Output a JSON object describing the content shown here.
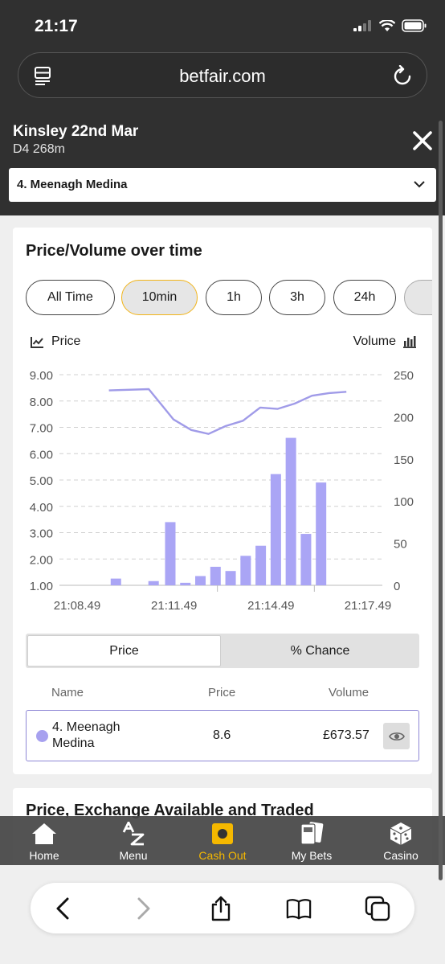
{
  "status": {
    "time": "21:17"
  },
  "browser": {
    "url": "betfair.com"
  },
  "event": {
    "name": "Kinsley 22nd Mar",
    "subtitle": "D4 268m",
    "selected_runner": "4. Meenagh Medina"
  },
  "card": {
    "title": "Price/Volume over time",
    "ranges": [
      "All Time",
      "10min",
      "1h",
      "3h",
      "24h"
    ],
    "active_range": "10min",
    "legend_price": "Price",
    "legend_volume": "Volume"
  },
  "chart_data": {
    "type": "bar",
    "title": "",
    "x_ticks": [
      "21:08.49",
      "21:11.49",
      "21:14.49",
      "21:17.49"
    ],
    "y_left_ticks": [
      "9.00",
      "8.00",
      "7.00",
      "6.00",
      "5.00",
      "4.00",
      "3.00",
      "2.00",
      "1.00"
    ],
    "y_right_ticks": [
      "250",
      "200",
      "150",
      "100",
      "50",
      "0"
    ],
    "y_left_range": [
      1,
      9
    ],
    "y_right_range": [
      0,
      250
    ],
    "volume_series": [
      {
        "time": "21:10.04",
        "volume": 8
      },
      {
        "time": "21:11.14",
        "volume": 5
      },
      {
        "time": "21:11.45",
        "volume": 75
      },
      {
        "time": "21:12.13",
        "volume": 3
      },
      {
        "time": "21:12.41",
        "volume": 11
      },
      {
        "time": "21:13.09",
        "volume": 22
      },
      {
        "time": "21:13.37",
        "volume": 17
      },
      {
        "time": "21:14.05",
        "volume": 35
      },
      {
        "time": "21:14.33",
        "volume": 47
      },
      {
        "time": "21:15.01",
        "volume": 132
      },
      {
        "time": "21:15.29",
        "volume": 175
      },
      {
        "time": "21:15.57",
        "volume": 61
      },
      {
        "time": "21:16.25",
        "volume": 122
      }
    ],
    "price_series": [
      {
        "time": "21:09.51",
        "price": 8.4
      },
      {
        "time": "21:11.05",
        "price": 8.45
      },
      {
        "time": "21:11.51",
        "price": 7.3
      },
      {
        "time": "21:12.24",
        "price": 6.9
      },
      {
        "time": "21:12.56",
        "price": 6.75
      },
      {
        "time": "21:13.28",
        "price": 7.05
      },
      {
        "time": "21:14.00",
        "price": 7.25
      },
      {
        "time": "21:14.32",
        "price": 7.75
      },
      {
        "time": "21:15.04",
        "price": 7.7
      },
      {
        "time": "21:15.36",
        "price": 7.9
      },
      {
        "time": "21:16.08",
        "price": 8.2
      },
      {
        "time": "21:16.40",
        "price": 8.3
      },
      {
        "time": "21:17.12",
        "price": 8.35
      }
    ],
    "colors": {
      "price_line": "#a09be8",
      "volume_bar": "#aaa5f5",
      "grid": "#d0d0d0"
    }
  },
  "toggle": {
    "price": "Price",
    "chance": "% Chance"
  },
  "table": {
    "headers": {
      "name": "Name",
      "price": "Price",
      "volume": "Volume"
    },
    "rows": [
      {
        "name": "4. Meenagh Medina",
        "price": "8.6",
        "volume": "£673.57"
      }
    ]
  },
  "section2": {
    "title": "Price, Exchange Available and Traded"
  },
  "nav": [
    {
      "label": "Home",
      "icon": "home-icon"
    },
    {
      "label": "Menu",
      "icon": "az-menu-icon"
    },
    {
      "label": "Cash Out",
      "icon": "cash-out-icon",
      "active": true
    },
    {
      "label": "My Bets",
      "icon": "my-bets-icon"
    },
    {
      "label": "Casino",
      "icon": "dice-icon"
    }
  ]
}
